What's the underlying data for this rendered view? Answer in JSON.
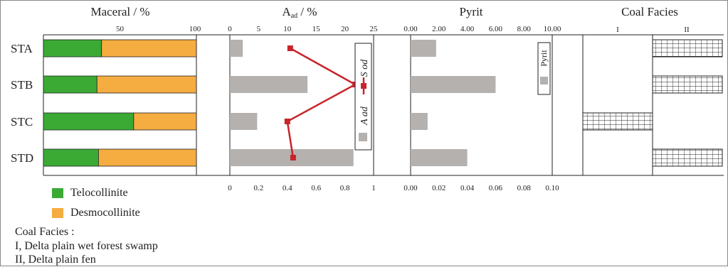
{
  "samples": [
    "STA",
    "STB",
    "STC",
    "STD"
  ],
  "colors": {
    "telocollinite": "#3aaa35",
    "desmocollinite": "#f5ac40",
    "bar_gray": "#b5b1ae",
    "line_red": "#c8242b",
    "grid_fill": "#ffffff"
  },
  "legend": {
    "telocollinite_label": "Telocollinite",
    "desmocollinite_label": "Desmocollinite",
    "coal_facies_heading": "Coal Facies :",
    "facies_I": "I, Delta plain wet forest swamp",
    "facies_II": "II, Delta plain fen"
  },
  "chart_data": [
    {
      "panel": "maceral",
      "type": "bar",
      "stacked": true,
      "orientation": "horizontal",
      "title": "Maceral / %",
      "categories": [
        "STA",
        "STB",
        "STC",
        "STD"
      ],
      "series": [
        {
          "name": "Telocollinite",
          "values": [
            38,
            35,
            59,
            36
          ]
        },
        {
          "name": "Desmocollinite",
          "values": [
            62,
            65,
            41,
            64
          ]
        }
      ],
      "xlim": [
        0,
        100
      ],
      "top_ticks": [
        "50",
        "100"
      ],
      "top_tick_values": [
        50,
        100
      ]
    },
    {
      "panel": "ash_sulfur",
      "type": "bar",
      "orientation": "horizontal",
      "title_main": "A",
      "title_sub": "ad",
      "title_rest": " / %",
      "categories": [
        "STA",
        "STB",
        "STC",
        "STD"
      ],
      "bars": {
        "name": "A ad",
        "values": [
          0.09,
          0.54,
          0.19,
          0.86
        ]
      },
      "line": {
        "name": "S od",
        "values": [
          10.5,
          21.8,
          10.0,
          11.0
        ]
      },
      "top_axis": {
        "ticks": [
          "0",
          "5",
          "10",
          "15",
          "20",
          "25"
        ],
        "values": [
          0,
          5,
          10,
          15,
          20,
          25
        ],
        "range": [
          0,
          25
        ]
      },
      "bottom_axis": {
        "ticks": [
          "0",
          "0.2",
          "0.4",
          "0.6",
          "0.8",
          "1"
        ],
        "values": [
          0,
          0.2,
          0.4,
          0.6,
          0.8,
          1.0
        ],
        "range": [
          0,
          1
        ]
      },
      "legend_box": {
        "line_label": "S od",
        "bar_label": "A ad"
      }
    },
    {
      "panel": "pyrite",
      "type": "bar",
      "orientation": "horizontal",
      "title": "Pyrit",
      "categories": [
        "STA",
        "STB",
        "STC",
        "STD"
      ],
      "values": [
        0.018,
        0.06,
        0.012,
        0.04
      ],
      "top_axis": {
        "ticks": [
          "0.00",
          "2.00",
          "4.00",
          "6.00",
          "8.00",
          "10.00"
        ],
        "values": [
          0,
          2,
          4,
          6,
          8,
          10
        ],
        "range": [
          0,
          10
        ]
      },
      "bottom_axis": {
        "ticks": [
          "0.00",
          "0.02",
          "0.04",
          "0.06",
          "0.08",
          "0.10"
        ],
        "values": [
          0,
          0.02,
          0.04,
          0.06,
          0.08,
          0.1
        ],
        "range": [
          0,
          0.1
        ]
      },
      "legend_box": {
        "label": "Pyrit"
      }
    },
    {
      "panel": "coal_facies",
      "type": "table",
      "title": "Coal Facies",
      "columns": [
        "I",
        "II"
      ],
      "facies": [
        "II",
        "II",
        "I",
        "II"
      ]
    }
  ]
}
